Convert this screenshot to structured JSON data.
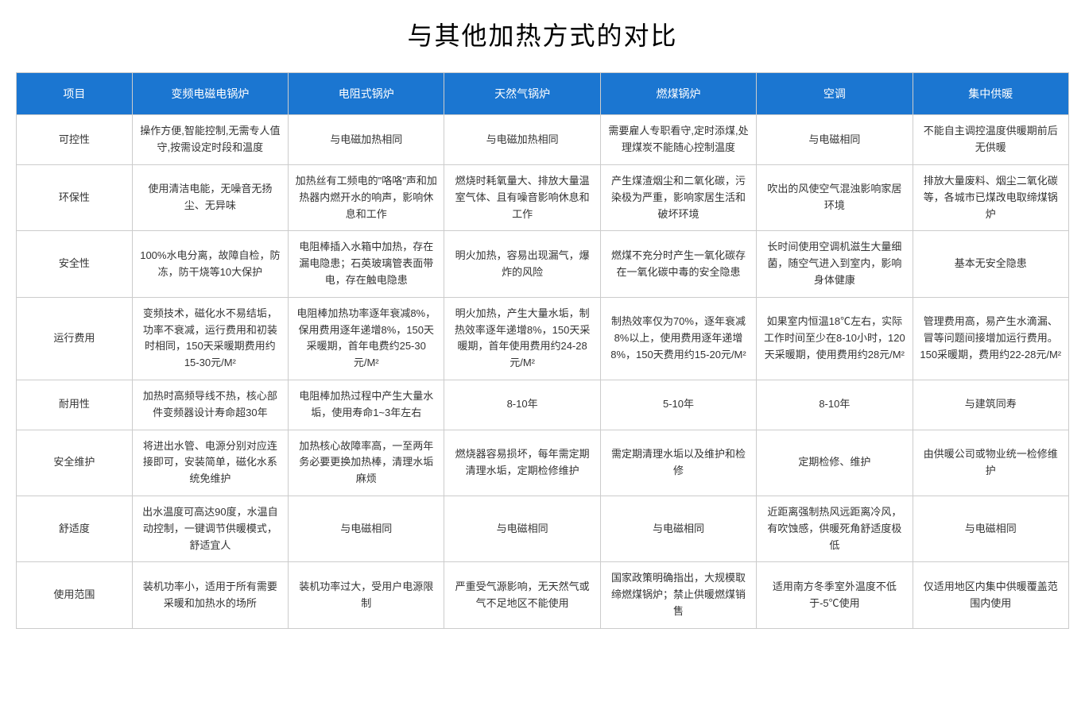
{
  "title": "与其他加热方式的对比",
  "table": {
    "columns": [
      "项目",
      "变频电磁电锅炉",
      "电阻式锅炉",
      "天然气锅炉",
      "燃煤锅炉",
      "空调",
      "集中供暖"
    ],
    "rows": [
      {
        "label": "可控性",
        "cells": [
          "操作方便,智能控制,无需专人值守,按需设定时段和温度",
          "与电磁加热相同",
          "与电磁加热相同",
          "需要雇人专职看守,定时添煤,处理煤炭不能随心控制温度",
          "与电磁相同",
          "不能自主调控温度供暖期前后无供暖"
        ]
      },
      {
        "label": "环保性",
        "cells": [
          "使用清洁电能，无噪音无扬尘、无异味",
          "加热丝有工频电的\"咯咯\"声和加热器内燃开水的响声，影响休息和工作",
          "燃烧时耗氧量大、排放大量温室气体、且有噪音影响休息和工作",
          "产生煤渣烟尘和二氧化碳，污染极为严重，影响家居生活和破坏环境",
          "吹出的风使空气混浊影响家居环境",
          "排放大量废料、烟尘二氧化碳等，各城市已煤改电取缔煤锅炉"
        ]
      },
      {
        "label": "安全性",
        "cells": [
          "100%水电分离，故障自检，防冻，防干烧等10大保护",
          "电阻棒插入水箱中加热，存在漏电隐患；石英玻璃管表面带电，存在触电隐患",
          "明火加热，容易出现漏气，爆炸的风险",
          "燃煤不充分时产生一氧化碳存在一氧化碳中毒的安全隐患",
          "长时间使用空调机滋生大量细菌，随空气进入到室内，影响身体健康",
          "基本无安全隐患"
        ]
      },
      {
        "label": "运行费用",
        "cells": [
          "变频技术，磁化水不易结垢，功率不衰减，运行费用和初装时相同，150天采暖期费用约15-30元/M²",
          "电阻棒加热功率逐年衰减8%，保用费用逐年递增8%，150天采暖期，首年电费约25-30元/M²",
          "明火加热，产生大量水垢，制热效率逐年递增8%，150天采暖期，首年使用费用约24-28元/M²",
          "制热效率仅为70%，逐年衰减8%以上，使用费用逐年递增8%，150天费用约15-20元/M²",
          "如果室内恒温18℃左右，实际工作时间至少在8-10小时，120天采暖期，使用费用约28元/M²",
          "管理费用高，易产生水滴漏、冒等问题间接增加运行费用。150采暖期，费用约22-28元/M²"
        ]
      },
      {
        "label": "耐用性",
        "cells": [
          "加热时高频导线不热，核心部件变频器设计寿命超30年",
          "电阻棒加热过程中产生大量水垢，使用寿命1~3年左右",
          "8-10年",
          "5-10年",
          "8-10年",
          "与建筑同寿"
        ]
      },
      {
        "label": "安全维护",
        "cells": [
          "将进出水管、电源分别对应连接即可，安装简单，磁化水系统免维护",
          "加热核心故障率高，一至两年务必要更换加热棒，清理水垢麻烦",
          "燃烧器容易损坏，每年需定期清理水垢，定期检修维护",
          "需定期清理水垢以及维护和检修",
          "定期检修、维护",
          "由供暖公司或物业统一检修维护"
        ]
      },
      {
        "label": "舒适度",
        "cells": [
          "出水温度可高达90度，水温自动控制，一键调节供暖模式，舒适宜人",
          "与电磁相同",
          "与电磁相同",
          "与电磁相同",
          "近距离强制热风远距离冷风，有吹蚀感，供暖死角舒适度极低",
          "与电磁相同"
        ]
      },
      {
        "label": "使用范围",
        "cells": [
          "装机功率小，适用于所有需要采暖和加热水的场所",
          "装机功率过大，受用户电源限制",
          "严重受气源影响，无天然气或气不足地区不能使用",
          "国家政策明确指出，大规模取缔燃煤锅炉；禁止供暖燃煤销售",
          "适用南方冬季室外温度不低于-5℃使用",
          "仅适用地区内集中供暖覆盖范围内使用"
        ]
      }
    ],
    "header_bg_color": "#1b76d1",
    "header_text_color": "#ffffff",
    "border_color": "#cccccc",
    "cell_text_color": "#333333",
    "background_color": "#ffffff",
    "title_fontsize": 32,
    "cell_fontsize": 13,
    "header_fontsize": 14
  }
}
